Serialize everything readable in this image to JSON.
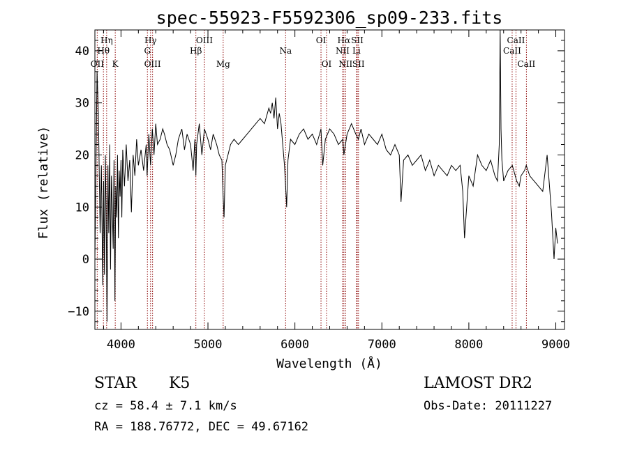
{
  "chart_data": {
    "type": "line",
    "title": "spec-55923-F5592306_sp09-233.fits",
    "xlabel": "Wavelength (Å)",
    "ylabel": "Flux (relative)",
    "xlim": [
      3700,
      9100
    ],
    "ylim": [
      -13.5,
      44
    ],
    "xticks": [
      4000,
      5000,
      6000,
      7000,
      8000,
      9000
    ],
    "yticks": [
      -10,
      0,
      10,
      20,
      30,
      40
    ],
    "grid": false,
    "series": [
      {
        "x": [
          3700,
          3725,
          3740,
          3760,
          3775,
          3790,
          3800,
          3810,
          3820,
          3830,
          3840,
          3850,
          3860,
          3870,
          3880,
          3890,
          3900,
          3910,
          3920,
          3930,
          3940,
          3950,
          3960,
          3970,
          3980,
          3990,
          4000,
          4010,
          4020,
          4040,
          4060,
          4080,
          4100,
          4120,
          4140,
          4160,
          4180,
          4200,
          4230,
          4260,
          4290,
          4300,
          4320,
          4340,
          4360,
          4380,
          4400,
          4420,
          4450,
          4480,
          4500,
          4530,
          4560,
          4600,
          4630,
          4660,
          4700,
          4730,
          4760,
          4800,
          4830,
          4850,
          4861,
          4870,
          4900,
          4930,
          4960,
          5000,
          5030,
          5060,
          5100,
          5130,
          5160,
          5175,
          5185,
          5200,
          5230,
          5260,
          5300,
          5350,
          5400,
          5450,
          5500,
          5550,
          5600,
          5650,
          5700,
          5720,
          5740,
          5760,
          5780,
          5800,
          5820,
          5840,
          5860,
          5880,
          5893,
          5905,
          5920,
          5950,
          6000,
          6050,
          6100,
          6150,
          6200,
          6250,
          6300,
          6320,
          6350,
          6400,
          6450,
          6500,
          6550,
          6563,
          6600,
          6650,
          6700,
          6730,
          6760,
          6800,
          6850,
          6900,
          6950,
          7000,
          7050,
          7100,
          7150,
          7200,
          7220,
          7250,
          7300,
          7350,
          7400,
          7450,
          7500,
          7550,
          7600,
          7650,
          7700,
          7750,
          7800,
          7850,
          7900,
          7930,
          7950,
          8000,
          8050,
          8100,
          8150,
          8200,
          8250,
          8300,
          8330,
          8350,
          8360,
          8370,
          8380,
          8400,
          8450,
          8500,
          8550,
          8580,
          8600,
          8640,
          8660,
          8700,
          8750,
          8800,
          8850,
          8900,
          8950,
          8980,
          9000,
          9020
        ],
        "y": [
          0,
          36,
          28,
          5,
          18,
          -5,
          15,
          -3,
          20,
          8,
          -12,
          18,
          5,
          22,
          -2,
          16,
          10,
          2,
          19,
          -8,
          14,
          8,
          20,
          4,
          17,
          12,
          19,
          8,
          21,
          14,
          22,
          15,
          19,
          9,
          20,
          16,
          23,
          18,
          21,
          17,
          22,
          16,
          24,
          18,
          25,
          20,
          26,
          22,
          23,
          25,
          24,
          22,
          21,
          18,
          20,
          23,
          25,
          21,
          24,
          22,
          17,
          23,
          16,
          22,
          26,
          20,
          25,
          23,
          21,
          24,
          22,
          20,
          19,
          12,
          8,
          18,
          20,
          22,
          23,
          22,
          23,
          24,
          25,
          26,
          27,
          26,
          29,
          28,
          30,
          27,
          31,
          25,
          28,
          26,
          22,
          18,
          14,
          10,
          19,
          23,
          22,
          24,
          25,
          23,
          24,
          22,
          25,
          18,
          23,
          25,
          24,
          22,
          23,
          20,
          24,
          26,
          24,
          23,
          25,
          22,
          24,
          23,
          22,
          24,
          21,
          20,
          22,
          20,
          11,
          19,
          20,
          18,
          19,
          20,
          17,
          19,
          16,
          18,
          17,
          16,
          18,
          17,
          18,
          13,
          4,
          16,
          14,
          20,
          18,
          17,
          19,
          16,
          15,
          22,
          44,
          25,
          19,
          15,
          17,
          18,
          15,
          14,
          16,
          17,
          18,
          16,
          15,
          14,
          13,
          20,
          9,
          0,
          6,
          3
        ]
      }
    ],
    "lines": [
      {
        "label": "OII",
        "wl": 3727,
        "row": 3
      },
      {
        "label": "Hθ",
        "wl": 3798,
        "row": 2
      },
      {
        "label": "Hη",
        "wl": 3835,
        "row": 1
      },
      {
        "label": "K",
        "wl": 3934,
        "row": 3
      },
      {
        "label": "Hγ",
        "wl": 4340,
        "row": 1
      },
      {
        "label": "G",
        "wl": 4304,
        "row": 2
      },
      {
        "label": "OIII",
        "wl": 4363,
        "row": 3
      },
      {
        "label": "Hβ",
        "wl": 4861,
        "row": 2
      },
      {
        "label": "OIII",
        "wl": 4959,
        "row": 1
      },
      {
        "label": "Mg",
        "wl": 5175,
        "row": 3
      },
      {
        "label": "Na",
        "wl": 5893,
        "row": 2
      },
      {
        "label": "OI",
        "wl": 6300,
        "row": 1
      },
      {
        "label": "OI",
        "wl": 6364,
        "row": 3
      },
      {
        "label": "Hα",
        "wl": 6563,
        "row": 1
      },
      {
        "label": "NII",
        "wl": 6548,
        "row": 2
      },
      {
        "label": "NII",
        "wl": 6583,
        "row": 3
      },
      {
        "label": "SII",
        "wl": 6717,
        "row": 1
      },
      {
        "label": "Li",
        "wl": 6708,
        "row": 2
      },
      {
        "label": "SII",
        "wl": 6731,
        "row": 3
      },
      {
        "label": "CaII",
        "wl": 8542,
        "row": 1
      },
      {
        "label": "CaII",
        "wl": 8498,
        "row": 2
      },
      {
        "label": "CaII",
        "wl": 8662,
        "row": 3
      }
    ],
    "line_color": "#8b0000"
  },
  "info": {
    "object_class": "STAR",
    "subclass": "K5",
    "survey": "LAMOST DR2",
    "cz": "cz = 58.4 ± 7.1 km/s",
    "obs_date": "Obs-Date: 20111227",
    "radec": "RA = 188.76772, DEC =  49.67162"
  }
}
